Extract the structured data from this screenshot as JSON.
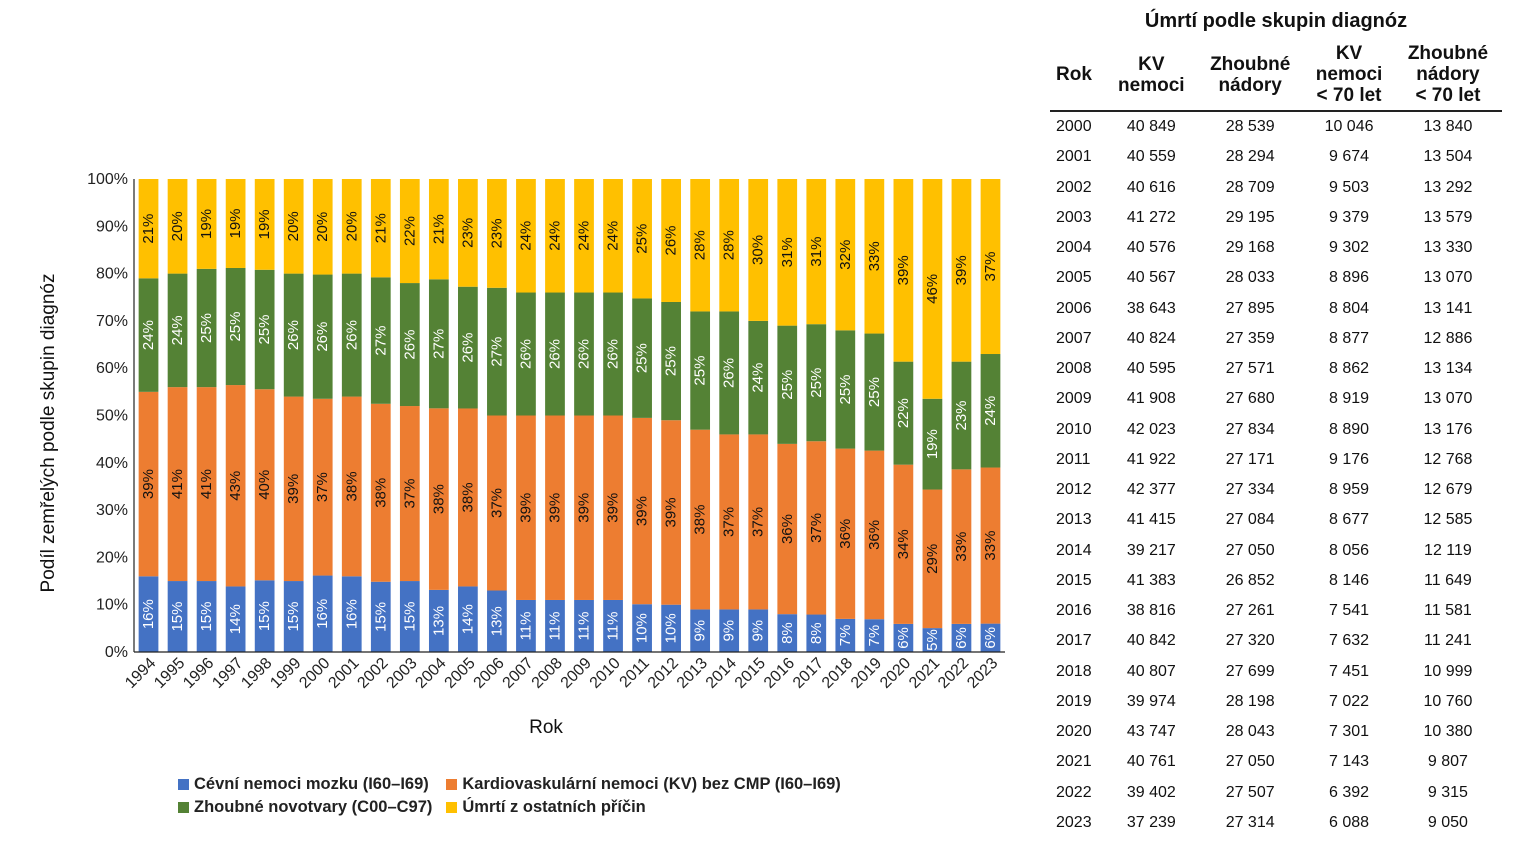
{
  "chart_data": {
    "type": "bar",
    "stacked": true,
    "normalized": true,
    "title": "",
    "xlabel": "Rok",
    "ylabel": "Podíl zemřelých podle skupin diagnóz",
    "ylim": [
      0,
      100
    ],
    "yticks": [
      "0%",
      "10%",
      "20%",
      "30%",
      "40%",
      "50%",
      "60%",
      "70%",
      "80%",
      "90%",
      "100%"
    ],
    "grid": false,
    "legend_position": "bottom",
    "categories": [
      "1994",
      "1995",
      "1996",
      "1997",
      "1998",
      "1999",
      "2000",
      "2001",
      "2002",
      "2003",
      "2004",
      "2005",
      "2006",
      "2007",
      "2008",
      "2009",
      "2010",
      "2011",
      "2012",
      "2013",
      "2014",
      "2015",
      "2016",
      "2017",
      "2018",
      "2019",
      "2020",
      "2021",
      "2022",
      "2023"
    ],
    "series": [
      {
        "name": "Cévní nemoci mozku (I60–I69)",
        "color": "#4472C4",
        "label_color": "#ffffff",
        "values": [
          16,
          15,
          15,
          14,
          15,
          15,
          16,
          16,
          15,
          15,
          13,
          14,
          13,
          11,
          11,
          11,
          11,
          10,
          10,
          9,
          9,
          9,
          8,
          8,
          7,
          7,
          6,
          5,
          6,
          6
        ]
      },
      {
        "name": "Kardiovaskulární nemoci (KV) bez CMP (I60–I69)",
        "color": "#ED7D31",
        "label_color": "#111111",
        "values": [
          39,
          41,
          41,
          43,
          40,
          39,
          37,
          38,
          38,
          37,
          38,
          38,
          37,
          39,
          39,
          39,
          39,
          39,
          39,
          38,
          37,
          37,
          36,
          37,
          36,
          36,
          34,
          29,
          33,
          33
        ]
      },
      {
        "name": "Zhoubné novotvary (C00–C97)",
        "color": "#548235",
        "label_color": "#ffffff",
        "values": [
          24,
          24,
          25,
          25,
          25,
          26,
          26,
          26,
          27,
          26,
          27,
          26,
          27,
          26,
          26,
          26,
          26,
          25,
          25,
          25,
          26,
          24,
          25,
          25,
          25,
          25,
          22,
          19,
          23,
          24
        ]
      },
      {
        "name": "Úmrtí z ostatních příčin",
        "color": "#FFC000",
        "label_color": "#111111",
        "values": [
          21,
          20,
          19,
          19,
          19,
          20,
          20,
          20,
          21,
          22,
          21,
          23,
          23,
          24,
          24,
          24,
          24,
          25,
          26,
          28,
          28,
          30,
          31,
          31,
          32,
          33,
          39,
          46,
          39,
          37
        ]
      }
    ]
  },
  "table": {
    "title": "Úmrtí podle skupin diagnóz",
    "headers": [
      [
        "Rok"
      ],
      [
        "KV",
        "nemoci"
      ],
      [
        "Zhoubné",
        "nádory"
      ],
      [
        "KV",
        "nemoci",
        "< 70 let"
      ],
      [
        "Zhoubné",
        "nádory",
        "< 70 let"
      ]
    ],
    "rows": [
      [
        "2000",
        "40 849",
        "28 539",
        "10 046",
        "13 840"
      ],
      [
        "2001",
        "40 559",
        "28 294",
        "9 674",
        "13 504"
      ],
      [
        "2002",
        "40 616",
        "28 709",
        "9 503",
        "13 292"
      ],
      [
        "2003",
        "41 272",
        "29 195",
        "9 379",
        "13 579"
      ],
      [
        "2004",
        "40 576",
        "29 168",
        "9 302",
        "13 330"
      ],
      [
        "2005",
        "40 567",
        "28 033",
        "8 896",
        "13 070"
      ],
      [
        "2006",
        "38 643",
        "27 895",
        "8 804",
        "13 141"
      ],
      [
        "2007",
        "40 824",
        "27 359",
        "8 877",
        "12 886"
      ],
      [
        "2008",
        "40 595",
        "27 571",
        "8 862",
        "13 134"
      ],
      [
        "2009",
        "41 908",
        "27 680",
        "8 919",
        "13 070"
      ],
      [
        "2010",
        "42 023",
        "27 834",
        "8 890",
        "13 176"
      ],
      [
        "2011",
        "41 922",
        "27 171",
        "9 176",
        "12 768"
      ],
      [
        "2012",
        "42 377",
        "27 334",
        "8 959",
        "12 679"
      ],
      [
        "2013",
        "41 415",
        "27 084",
        "8 677",
        "12 585"
      ],
      [
        "2014",
        "39 217",
        "27 050",
        "8 056",
        "12 119"
      ],
      [
        "2015",
        "41 383",
        "26 852",
        "8 146",
        "11 649"
      ],
      [
        "2016",
        "38 816",
        "27 261",
        "7 541",
        "11 581"
      ],
      [
        "2017",
        "40 842",
        "27 320",
        "7 632",
        "11 241"
      ],
      [
        "2018",
        "40 807",
        "27 699",
        "7 451",
        "10 999"
      ],
      [
        "2019",
        "39 974",
        "28 198",
        "7 022",
        "10 760"
      ],
      [
        "2020",
        "43 747",
        "28 043",
        "7 301",
        "10 380"
      ],
      [
        "2021",
        "40 761",
        "27 050",
        "7 143",
        "9 807"
      ],
      [
        "2022",
        "39 402",
        "27 507",
        "6 392",
        "9 315"
      ],
      [
        "2023",
        "37 239",
        "27 314",
        "6 088",
        "9 050"
      ]
    ]
  }
}
